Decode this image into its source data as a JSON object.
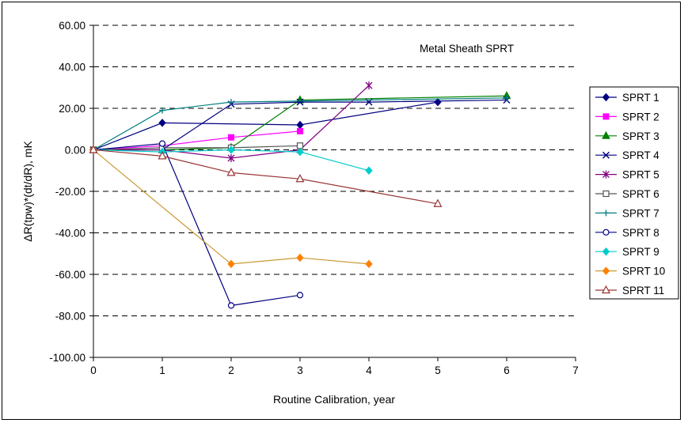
{
  "chart_data": {
    "type": "line",
    "title": "",
    "annotation": "Metal Sheath SPRT",
    "xlabel": "Routine Calibration, year",
    "ylabel": "ΔR(tpw)*(dt/dR), mK",
    "xlim": [
      0,
      7
    ],
    "ylim": [
      -100,
      60
    ],
    "x_ticks": [
      0,
      1,
      2,
      3,
      4,
      5,
      6,
      7
    ],
    "y_ticks": [
      60,
      40,
      20,
      0,
      -20,
      -40,
      -60,
      -80,
      -100
    ],
    "y_tick_labels": [
      "60.00",
      "40.00",
      "20.00",
      "0.00",
      "-20.00",
      "-40.00",
      "-60.00",
      "-80.00",
      "-100.00"
    ],
    "x_tick_labels": [
      "0",
      "1",
      "2",
      "3",
      "4",
      "5",
      "6",
      "7"
    ],
    "grid": "horizontal-dashed",
    "legend_position": "right",
    "series": [
      {
        "name": "SPRT 1",
        "color": "#000080",
        "marker": "diamond-filled",
        "x": [
          0,
          1,
          3,
          5
        ],
        "y": [
          0,
          13,
          12,
          23
        ]
      },
      {
        "name": "SPRT 2",
        "color": "#ff00ff",
        "marker": "square-filled",
        "x": [
          0,
          1,
          2,
          3
        ],
        "y": [
          0,
          2,
          6,
          9
        ]
      },
      {
        "name": "SPRT 3",
        "color": "#008000",
        "marker": "triangle-filled",
        "x": [
          0,
          1,
          2,
          3,
          6
        ],
        "y": [
          0,
          0,
          1,
          24,
          26
        ]
      },
      {
        "name": "SPRT 4",
        "color": "#000080",
        "marker": "x",
        "x": [
          0,
          1,
          2,
          3,
          4,
          6
        ],
        "y": [
          0,
          0,
          22,
          23,
          23,
          24
        ]
      },
      {
        "name": "SPRT 5",
        "color": "#800080",
        "marker": "star",
        "x": [
          0,
          1,
          2,
          3,
          4
        ],
        "y": [
          0,
          0,
          -4,
          0,
          31
        ]
      },
      {
        "name": "SPRT 6",
        "color": "#555555",
        "marker": "square-open",
        "x": [
          0,
          1,
          2,
          3
        ],
        "y": [
          0,
          1,
          1,
          2
        ]
      },
      {
        "name": "SPRT 7",
        "color": "#008080",
        "marker": "plus",
        "x": [
          0,
          1,
          2,
          6
        ],
        "y": [
          0,
          19,
          23,
          25
        ]
      },
      {
        "name": "SPRT 8",
        "color": "#000080",
        "marker": "circle-open",
        "x": [
          0,
          1,
          2,
          3
        ],
        "y": [
          0,
          3,
          -75,
          -70
        ]
      },
      {
        "name": "SPRT 9",
        "color": "#00cccc",
        "marker": "diamond-filled",
        "x": [
          0,
          1,
          2,
          3,
          4
        ],
        "y": [
          0,
          -1,
          0,
          -1,
          -10
        ]
      },
      {
        "name": "SPRT 10",
        "color": "#ff8000",
        "marker": "diamond-filled",
        "lineColor": "#cc9933",
        "x": [
          0,
          2,
          3,
          4
        ],
        "y": [
          0,
          -55,
          -52,
          -55
        ]
      },
      {
        "name": "SPRT 11",
        "color": "#993333",
        "marker": "triangle-open",
        "x": [
          0,
          1,
          2,
          3,
          5
        ],
        "y": [
          0,
          -3,
          -11,
          -14,
          -26
        ]
      }
    ]
  }
}
